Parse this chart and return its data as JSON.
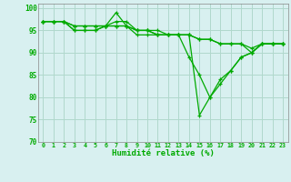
{
  "xlabel": "Humidité relative (%)",
  "ylabel": "",
  "xlim": [
    -0.5,
    23.5
  ],
  "ylim": [
    70,
    101
  ],
  "yticks": [
    70,
    75,
    80,
    85,
    90,
    95,
    100
  ],
  "xtick_labels": [
    "0",
    "1",
    "2",
    "3",
    "4",
    "5",
    "6",
    "7",
    "8",
    "9",
    "10",
    "11",
    "12",
    "13",
    "14",
    "15",
    "16",
    "17",
    "18",
    "19",
    "20",
    "21",
    "22",
    "23"
  ],
  "background_color": "#d8f0f0",
  "grid_color": "#b0d8cc",
  "line_color": "#00aa00",
  "series": [
    [
      97,
      97,
      97,
      95,
      95,
      95,
      96,
      99,
      96,
      94,
      94,
      94,
      94,
      94,
      89,
      85,
      80,
      84,
      86,
      89,
      90,
      92,
      92,
      92
    ],
    [
      97,
      97,
      97,
      95,
      95,
      95,
      96,
      97,
      97,
      95,
      95,
      94,
      94,
      94,
      94,
      76,
      80,
      83,
      86,
      89,
      90,
      92,
      92,
      92
    ],
    [
      97,
      97,
      97,
      96,
      96,
      96,
      96,
      96,
      96,
      95,
      95,
      95,
      94,
      94,
      94,
      93,
      93,
      92,
      92,
      92,
      91,
      92,
      92,
      92
    ],
    [
      97,
      97,
      97,
      96,
      96,
      96,
      96,
      96,
      96,
      95,
      95,
      94,
      94,
      94,
      94,
      93,
      93,
      92,
      92,
      92,
      90,
      92,
      92,
      92
    ]
  ]
}
